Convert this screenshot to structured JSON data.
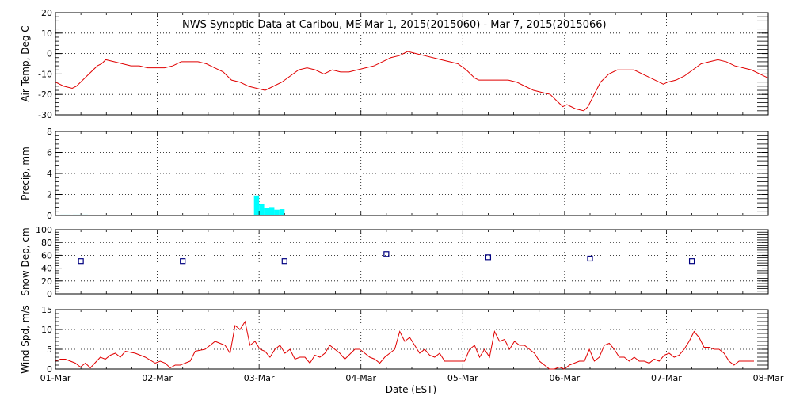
{
  "chart_data": {
    "title": "NWS Synoptic Data at Caribou, ME   Mar  1, 2015(2015060) - Mar  7, 2015(2015066)",
    "xlabel": "Date (EST)",
    "x_tick_labels": [
      "01-Mar",
      "02-Mar",
      "03-Mar",
      "04-Mar",
      "05-Mar",
      "06-Mar",
      "07-Mar",
      "08-Mar"
    ],
    "x_range_days": [
      0,
      7
    ],
    "grid": true,
    "colors": {
      "temp": "#e00000",
      "precip": "#00ffff",
      "snow": "#000080",
      "wind": "#e00000",
      "grid": "#000000"
    },
    "panels": [
      {
        "id": "air_temp",
        "type": "line",
        "ylabel": "Air Temp, Deg C",
        "ylim": [
          -30,
          20
        ],
        "yticks": [
          20,
          10,
          0,
          -10,
          -20,
          -30
        ],
        "points": [
          [
            0,
            -14
          ],
          [
            0.1,
            -16
          ],
          [
            0.2,
            -17
          ],
          [
            0.25,
            -16
          ],
          [
            0.3,
            -14
          ],
          [
            0.4,
            -10
          ],
          [
            0.5,
            -6
          ],
          [
            0.55,
            -5
          ],
          [
            0.6,
            -3
          ],
          [
            0.7,
            -4
          ],
          [
            0.8,
            -5
          ],
          [
            0.9,
            -6
          ],
          [
            1.0,
            -6
          ],
          [
            1.1,
            -7
          ],
          [
            1.2,
            -7
          ],
          [
            1.3,
            -7
          ],
          [
            1.4,
            -6
          ],
          [
            1.5,
            -4
          ],
          [
            1.6,
            -4
          ],
          [
            1.7,
            -4
          ],
          [
            1.8,
            -5
          ],
          [
            1.9,
            -7
          ],
          [
            2.0,
            -9
          ],
          [
            2.1,
            -13
          ],
          [
            2.2,
            -14
          ],
          [
            2.3,
            -16
          ],
          [
            2.4,
            -17
          ],
          [
            2.5,
            -18
          ],
          [
            2.6,
            -16
          ],
          [
            2.7,
            -14
          ],
          [
            2.8,
            -11
          ],
          [
            2.9,
            -8
          ],
          [
            3.0,
            -7
          ],
          [
            3.1,
            -8
          ],
          [
            3.2,
            -10
          ],
          [
            3.3,
            -8
          ],
          [
            3.4,
            -9
          ],
          [
            3.5,
            -9
          ],
          [
            3.6,
            -8
          ],
          [
            3.7,
            -7
          ],
          [
            3.8,
            -6
          ],
          [
            3.9,
            -4
          ],
          [
            4.0,
            -2
          ],
          [
            4.1,
            -1
          ],
          [
            4.2,
            1
          ],
          [
            4.3,
            0
          ],
          [
            4.4,
            -1
          ],
          [
            4.5,
            -2
          ],
          [
            4.6,
            -3
          ],
          [
            4.7,
            -4
          ],
          [
            4.8,
            -5
          ],
          [
            4.9,
            -8
          ],
          [
            5.0,
            -12
          ],
          [
            5.05,
            -13
          ],
          [
            5.1,
            -13
          ],
          [
            5.2,
            -13
          ],
          [
            5.3,
            -13
          ],
          [
            5.4,
            -13
          ],
          [
            5.5,
            -14
          ],
          [
            5.6,
            -16
          ],
          [
            5.7,
            -18
          ],
          [
            5.8,
            -19
          ],
          [
            5.9,
            -20
          ],
          [
            6.0,
            -24
          ],
          [
            6.05,
            -26
          ],
          [
            6.1,
            -25
          ],
          [
            6.2,
            -27
          ],
          [
            6.3,
            -28
          ],
          [
            6.35,
            -26
          ],
          [
            6.4,
            -22
          ],
          [
            6.5,
            -14
          ],
          [
            6.6,
            -10
          ],
          [
            6.7,
            -8
          ],
          [
            6.8,
            -8
          ],
          [
            6.9,
            -8
          ],
          [
            7.0,
            -10
          ],
          [
            7.1,
            -12
          ],
          [
            7.2,
            -14
          ],
          [
            7.25,
            -15
          ],
          [
            7.3,
            -14
          ],
          [
            7.4,
            -13
          ],
          [
            7.5,
            -11
          ],
          [
            7.6,
            -8
          ],
          [
            7.7,
            -5
          ],
          [
            7.8,
            -4
          ],
          [
            7.9,
            -3
          ],
          [
            8.0,
            -4
          ],
          [
            8.1,
            -6
          ],
          [
            8.2,
            -7
          ],
          [
            8.3,
            -8
          ],
          [
            8.4,
            -10
          ],
          [
            8.5,
            -12
          ]
        ],
        "x_scale": 0.8235
      },
      {
        "id": "precip",
        "type": "bar",
        "ylabel": "Precip, mm",
        "ylim": [
          0,
          8
        ],
        "yticks": [
          8,
          6,
          4,
          2,
          0
        ],
        "bars": [
          [
            0.05,
            0.08
          ],
          [
            0.1,
            0.08
          ],
          [
            0.17,
            0.08
          ],
          [
            0.22,
            0.08
          ],
          [
            0.27,
            0.08
          ],
          [
            1.95,
            1.9
          ],
          [
            2.0,
            1.1
          ],
          [
            2.05,
            0.7
          ],
          [
            2.1,
            0.8
          ],
          [
            2.15,
            0.55
          ],
          [
            2.2,
            0.6
          ]
        ],
        "bar_width_days": 0.05
      },
      {
        "id": "snow_depth",
        "type": "scatter",
        "ylabel": "Snow Dep, cm",
        "ylim": [
          0,
          100
        ],
        "yticks": [
          100,
          80,
          60,
          40,
          20,
          0
        ],
        "points": [
          [
            0.25,
            51
          ],
          [
            1.25,
            51
          ],
          [
            2.25,
            51
          ],
          [
            3.25,
            62
          ],
          [
            4.25,
            57
          ],
          [
            5.25,
            55
          ],
          [
            6.25,
            51
          ]
        ]
      },
      {
        "id": "wind_speed",
        "type": "line",
        "ylabel": "Wind Spd, m/s",
        "ylim": [
          0,
          15
        ],
        "yticks": [
          15,
          10,
          5,
          0
        ],
        "points": [
          [
            0,
            2
          ],
          [
            0.05,
            2.5
          ],
          [
            0.1,
            2.5
          ],
          [
            0.15,
            2
          ],
          [
            0.2,
            1.5
          ],
          [
            0.25,
            0.5
          ],
          [
            0.3,
            1.5
          ],
          [
            0.35,
            0.3
          ],
          [
            0.45,
            3
          ],
          [
            0.5,
            2.5
          ],
          [
            0.55,
            3.5
          ],
          [
            0.6,
            4
          ],
          [
            0.65,
            3
          ],
          [
            0.7,
            4.5
          ],
          [
            0.8,
            4
          ],
          [
            0.9,
            3
          ],
          [
            1.0,
            1.5
          ],
          [
            1.05,
            2
          ],
          [
            1.1,
            1.5
          ],
          [
            1.15,
            0.3
          ],
          [
            1.2,
            1
          ],
          [
            1.25,
            1
          ],
          [
            1.3,
            1.5
          ],
          [
            1.35,
            2
          ],
          [
            1.4,
            4.5
          ],
          [
            1.5,
            5
          ],
          [
            1.55,
            6
          ],
          [
            1.6,
            7
          ],
          [
            1.7,
            6
          ],
          [
            1.75,
            4
          ],
          [
            1.8,
            11
          ],
          [
            1.85,
            10
          ],
          [
            1.9,
            12
          ],
          [
            1.95,
            6
          ],
          [
            2.0,
            7
          ],
          [
            2.05,
            5
          ],
          [
            2.1,
            4.5
          ],
          [
            2.15,
            3
          ],
          [
            2.2,
            5
          ],
          [
            2.25,
            6
          ],
          [
            2.3,
            4
          ],
          [
            2.35,
            5
          ],
          [
            2.4,
            2.5
          ],
          [
            2.45,
            3
          ],
          [
            2.5,
            3
          ],
          [
            2.55,
            1.5
          ],
          [
            2.6,
            3.5
          ],
          [
            2.65,
            3
          ],
          [
            2.7,
            4
          ],
          [
            2.75,
            6
          ],
          [
            2.8,
            5
          ],
          [
            2.85,
            4
          ],
          [
            2.9,
            2.5
          ],
          [
            3.0,
            5
          ],
          [
            3.05,
            5
          ],
          [
            3.1,
            4
          ],
          [
            3.15,
            3
          ],
          [
            3.2,
            2.5
          ],
          [
            3.25,
            1.5
          ],
          [
            3.3,
            3
          ],
          [
            3.35,
            4
          ],
          [
            3.4,
            5
          ],
          [
            3.45,
            9.5
          ],
          [
            3.5,
            7
          ],
          [
            3.55,
            8
          ],
          [
            3.6,
            6
          ],
          [
            3.65,
            4
          ],
          [
            3.7,
            5
          ],
          [
            3.75,
            3.5
          ],
          [
            3.8,
            3
          ],
          [
            3.85,
            4
          ],
          [
            3.9,
            2
          ],
          [
            4.0,
            2
          ],
          [
            4.1,
            2
          ],
          [
            4.15,
            5
          ],
          [
            4.2,
            6
          ],
          [
            4.25,
            3
          ],
          [
            4.3,
            5
          ],
          [
            4.35,
            3
          ],
          [
            4.4,
            9.5
          ],
          [
            4.45,
            7
          ],
          [
            4.5,
            7.5
          ],
          [
            4.55,
            5
          ],
          [
            4.6,
            7
          ],
          [
            4.65,
            6
          ],
          [
            4.7,
            6
          ],
          [
            4.75,
            5
          ],
          [
            4.8,
            4
          ],
          [
            4.85,
            2
          ],
          [
            4.9,
            1
          ],
          [
            4.95,
            0
          ],
          [
            5.0,
            0
          ],
          [
            5.05,
            0.5
          ],
          [
            5.1,
            0
          ],
          [
            5.15,
            1
          ],
          [
            5.2,
            1.5
          ],
          [
            5.25,
            2
          ],
          [
            5.3,
            2
          ],
          [
            5.35,
            5
          ],
          [
            5.4,
            2
          ],
          [
            5.45,
            3
          ],
          [
            5.5,
            6
          ],
          [
            5.55,
            6.5
          ],
          [
            5.6,
            5
          ],
          [
            5.65,
            3
          ],
          [
            5.7,
            3
          ],
          [
            5.75,
            2
          ],
          [
            5.8,
            3
          ],
          [
            5.85,
            2
          ],
          [
            5.9,
            2
          ],
          [
            5.95,
            1.5
          ],
          [
            6.0,
            2.5
          ],
          [
            6.05,
            2
          ],
          [
            6.1,
            3.5
          ],
          [
            6.15,
            4
          ],
          [
            6.2,
            3
          ],
          [
            6.25,
            3.5
          ],
          [
            6.3,
            5
          ],
          [
            6.35,
            7
          ],
          [
            6.4,
            9.5
          ],
          [
            6.45,
            8
          ],
          [
            6.5,
            5.5
          ],
          [
            6.55,
            5.5
          ],
          [
            6.6,
            5
          ],
          [
            6.65,
            5
          ],
          [
            6.7,
            4
          ],
          [
            6.75,
            2
          ],
          [
            6.8,
            1
          ],
          [
            6.85,
            2
          ],
          [
            7.0,
            2
          ]
        ],
        "x_scale": 0.98
      }
    ]
  }
}
